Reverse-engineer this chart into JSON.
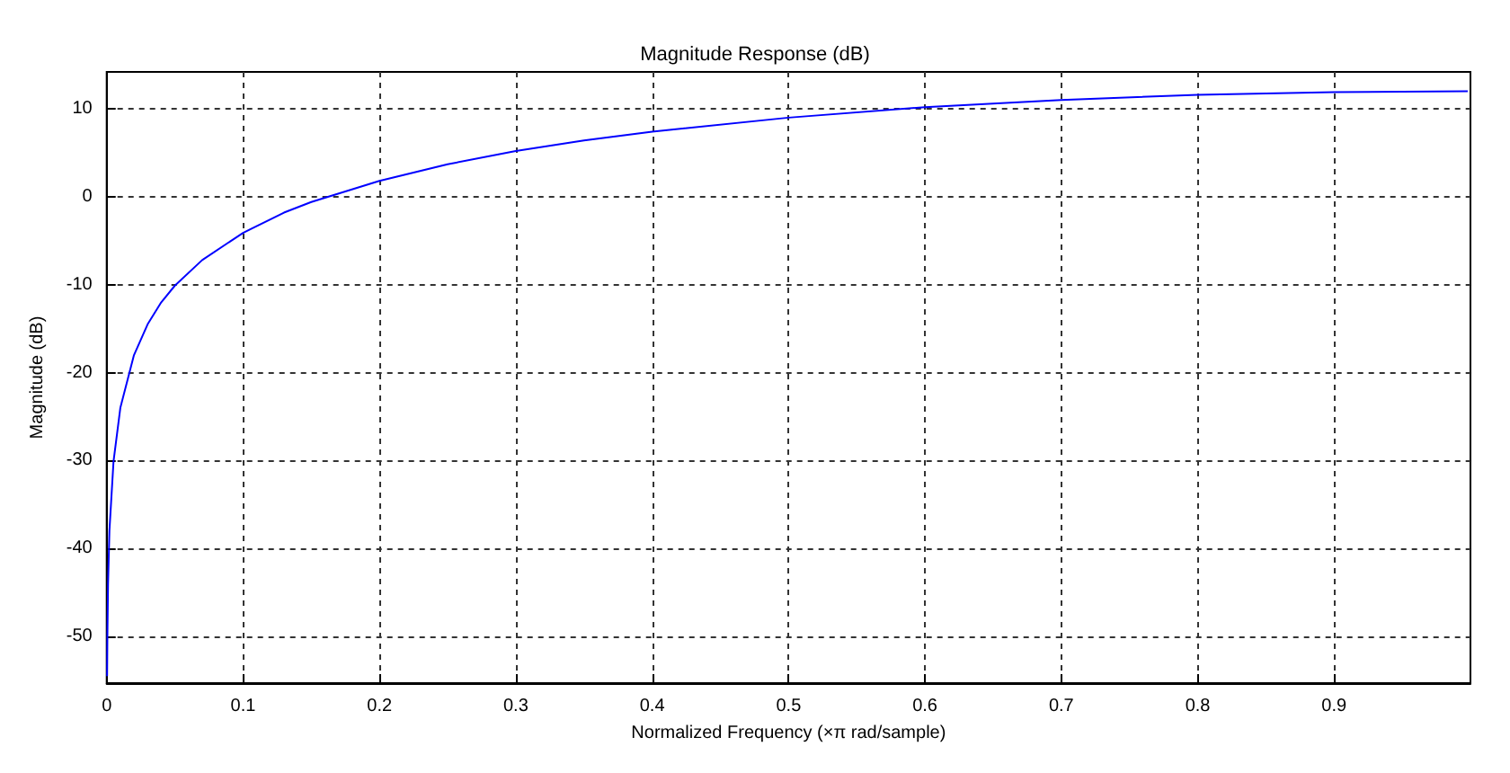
{
  "chart_data": {
    "type": "line",
    "title": "Magnitude Response (dB)",
    "xlabel": "Normalized Frequency (×π rad/sample)",
    "ylabel": "Magnitude (dB)",
    "x": [
      0.0003,
      0.0005,
      0.001,
      0.002,
      0.005,
      0.01,
      0.02,
      0.03,
      0.04,
      0.05,
      0.07,
      0.1,
      0.13,
      0.15,
      0.2,
      0.25,
      0.3,
      0.35,
      0.4,
      0.5,
      0.6,
      0.7,
      0.8,
      0.9,
      0.998
    ],
    "series": [
      {
        "color": "#0000ff",
        "values": [
          -54.5,
          -50.1,
          -44.0,
          -38.0,
          -30.1,
          -24.0,
          -18.0,
          -14.5,
          -12.0,
          -10.1,
          -7.2,
          -4.1,
          -1.8,
          -0.6,
          1.8,
          3.7,
          5.2,
          6.4,
          7.4,
          9.0,
          10.2,
          11.0,
          11.6,
          11.9,
          12.0
        ]
      }
    ],
    "xlim": [
      0,
      1
    ],
    "xticks": [
      0,
      0.1,
      0.2,
      0.3,
      0.4,
      0.5,
      0.6,
      0.7,
      0.8,
      0.9
    ],
    "ylim": [
      -55.3,
      14.2
    ],
    "yticks": [
      -50,
      -40,
      -30,
      -20,
      -10,
      0,
      10
    ],
    "grid": true,
    "line_style": "solid",
    "marker": "none"
  }
}
